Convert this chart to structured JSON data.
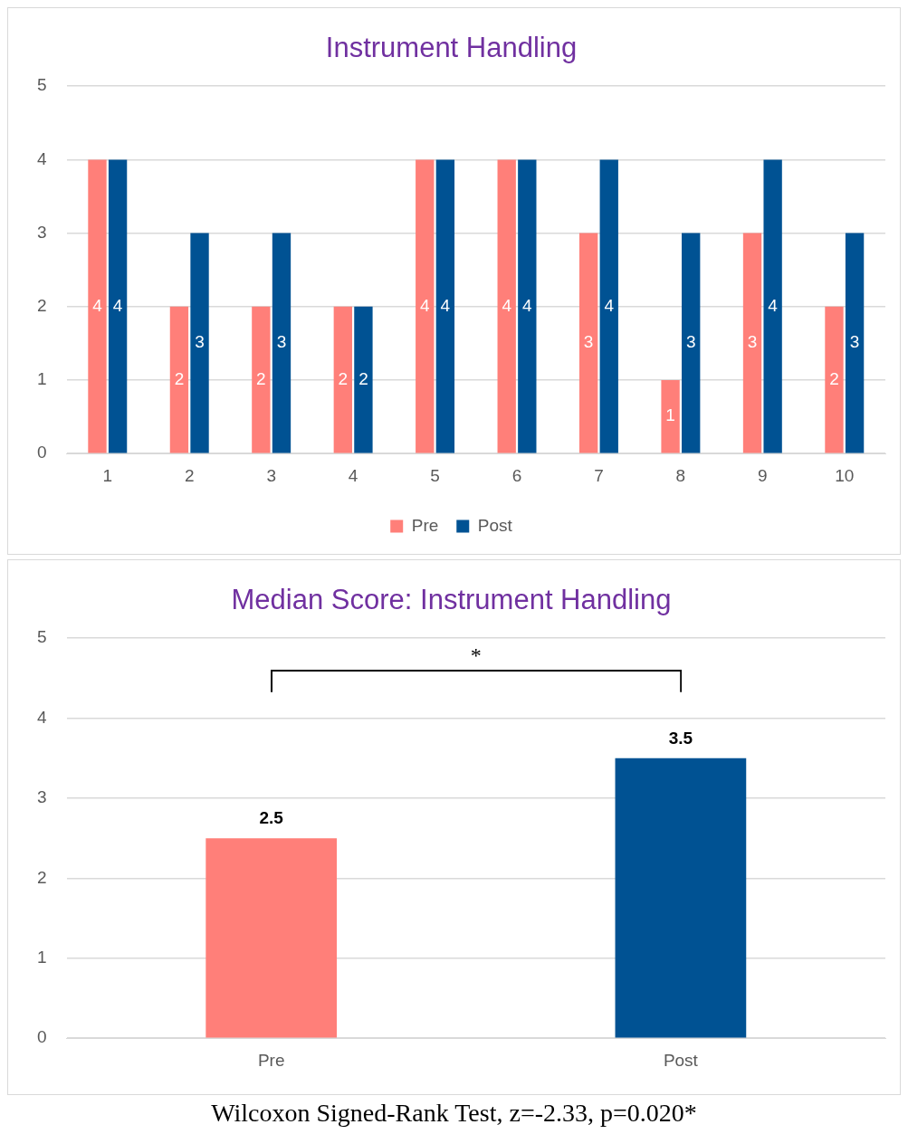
{
  "chart_data": [
    {
      "type": "bar",
      "title": "Instrument Handling",
      "categories": [
        "1",
        "2",
        "3",
        "4",
        "5",
        "6",
        "7",
        "8",
        "9",
        "10"
      ],
      "series": [
        {
          "name": "Pre",
          "color": "#ff7f79",
          "values": [
            4,
            2,
            2,
            2,
            4,
            4,
            3,
            1,
            3,
            2
          ]
        },
        {
          "name": "Post",
          "color": "#005293",
          "values": [
            4,
            3,
            3,
            2,
            4,
            4,
            4,
            3,
            4,
            3
          ]
        }
      ],
      "ylim": [
        0,
        5
      ],
      "yticks": [
        0,
        1,
        2,
        3,
        4,
        5
      ],
      "grid": "y",
      "legend": "bottom",
      "data_labels": true
    },
    {
      "type": "bar",
      "title": "Median Score: Instrument Handling",
      "categories": [
        "Pre",
        "Post"
      ],
      "values": [
        2.5,
        3.5
      ],
      "colors": [
        "#ff7f79",
        "#005293"
      ],
      "ylim": [
        0,
        5
      ],
      "yticks": [
        0,
        1,
        2,
        3,
        4,
        5
      ],
      "grid": "y",
      "data_labels": true,
      "annotations": [
        "*",
        "Wilcoxon Signed-Rank Test, z=-2.33, p=0.020*"
      ]
    }
  ]
}
